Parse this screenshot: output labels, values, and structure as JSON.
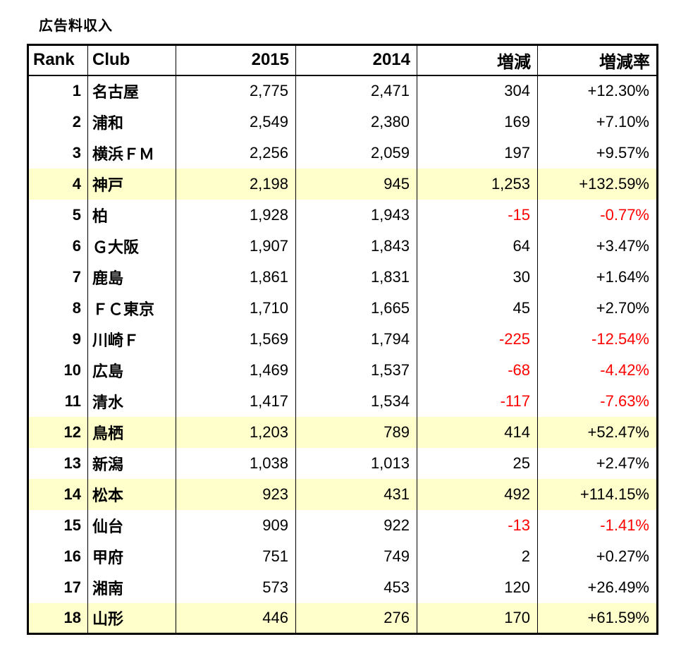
{
  "title": "広告料収入",
  "colors": {
    "highlight_row": "#FFFFCC",
    "negative_text": "#FF0000",
    "text": "#000000",
    "border": "#000000",
    "background": "#FFFFFF"
  },
  "chart_data": {
    "type": "table",
    "title": "広告料収入",
    "columns": [
      "Rank",
      "Club",
      "2015",
      "2014",
      "増減",
      "増減率"
    ],
    "rows": [
      {
        "rank": "1",
        "club": "名古屋",
        "v2015": "2,775",
        "v2014": "2,471",
        "diff": "304",
        "rate": "+12.30%",
        "highlight": false,
        "negative": false
      },
      {
        "rank": "2",
        "club": "浦和",
        "v2015": "2,549",
        "v2014": "2,380",
        "diff": "169",
        "rate": "+7.10%",
        "highlight": false,
        "negative": false
      },
      {
        "rank": "3",
        "club": "横浜ＦＭ",
        "v2015": "2,256",
        "v2014": "2,059",
        "diff": "197",
        "rate": "+9.57%",
        "highlight": false,
        "negative": false
      },
      {
        "rank": "4",
        "club": "神戸",
        "v2015": "2,198",
        "v2014": "945",
        "diff": "1,253",
        "rate": "+132.59%",
        "highlight": true,
        "negative": false
      },
      {
        "rank": "5",
        "club": "柏",
        "v2015": "1,928",
        "v2014": "1,943",
        "diff": "-15",
        "rate": "-0.77%",
        "highlight": false,
        "negative": true
      },
      {
        "rank": "6",
        "club": "Ｇ大阪",
        "v2015": "1,907",
        "v2014": "1,843",
        "diff": "64",
        "rate": "+3.47%",
        "highlight": false,
        "negative": false
      },
      {
        "rank": "7",
        "club": "鹿島",
        "v2015": "1,861",
        "v2014": "1,831",
        "diff": "30",
        "rate": "+1.64%",
        "highlight": false,
        "negative": false
      },
      {
        "rank": "8",
        "club": "ＦＣ東京",
        "v2015": "1,710",
        "v2014": "1,665",
        "diff": "45",
        "rate": "+2.70%",
        "highlight": false,
        "negative": false
      },
      {
        "rank": "9",
        "club": "川崎Ｆ",
        "v2015": "1,569",
        "v2014": "1,794",
        "diff": "-225",
        "rate": "-12.54%",
        "highlight": false,
        "negative": true
      },
      {
        "rank": "10",
        "club": "広島",
        "v2015": "1,469",
        "v2014": "1,537",
        "diff": "-68",
        "rate": "-4.42%",
        "highlight": false,
        "negative": true
      },
      {
        "rank": "11",
        "club": "清水",
        "v2015": "1,417",
        "v2014": "1,534",
        "diff": "-117",
        "rate": "-7.63%",
        "highlight": false,
        "negative": true
      },
      {
        "rank": "12",
        "club": "鳥栖",
        "v2015": "1,203",
        "v2014": "789",
        "diff": "414",
        "rate": "+52.47%",
        "highlight": true,
        "negative": false
      },
      {
        "rank": "13",
        "club": "新潟",
        "v2015": "1,038",
        "v2014": "1,013",
        "diff": "25",
        "rate": "+2.47%",
        "highlight": false,
        "negative": false
      },
      {
        "rank": "14",
        "club": "松本",
        "v2015": "923",
        "v2014": "431",
        "diff": "492",
        "rate": "+114.15%",
        "highlight": true,
        "negative": false
      },
      {
        "rank": "15",
        "club": "仙台",
        "v2015": "909",
        "v2014": "922",
        "diff": "-13",
        "rate": "-1.41%",
        "highlight": false,
        "negative": true
      },
      {
        "rank": "16",
        "club": "甲府",
        "v2015": "751",
        "v2014": "749",
        "diff": "2",
        "rate": "+0.27%",
        "highlight": false,
        "negative": false
      },
      {
        "rank": "17",
        "club": "湘南",
        "v2015": "573",
        "v2014": "453",
        "diff": "120",
        "rate": "+26.49%",
        "highlight": false,
        "negative": false
      },
      {
        "rank": "18",
        "club": "山形",
        "v2015": "446",
        "v2014": "276",
        "diff": "170",
        "rate": "+61.59%",
        "highlight": true,
        "negative": false
      }
    ]
  }
}
